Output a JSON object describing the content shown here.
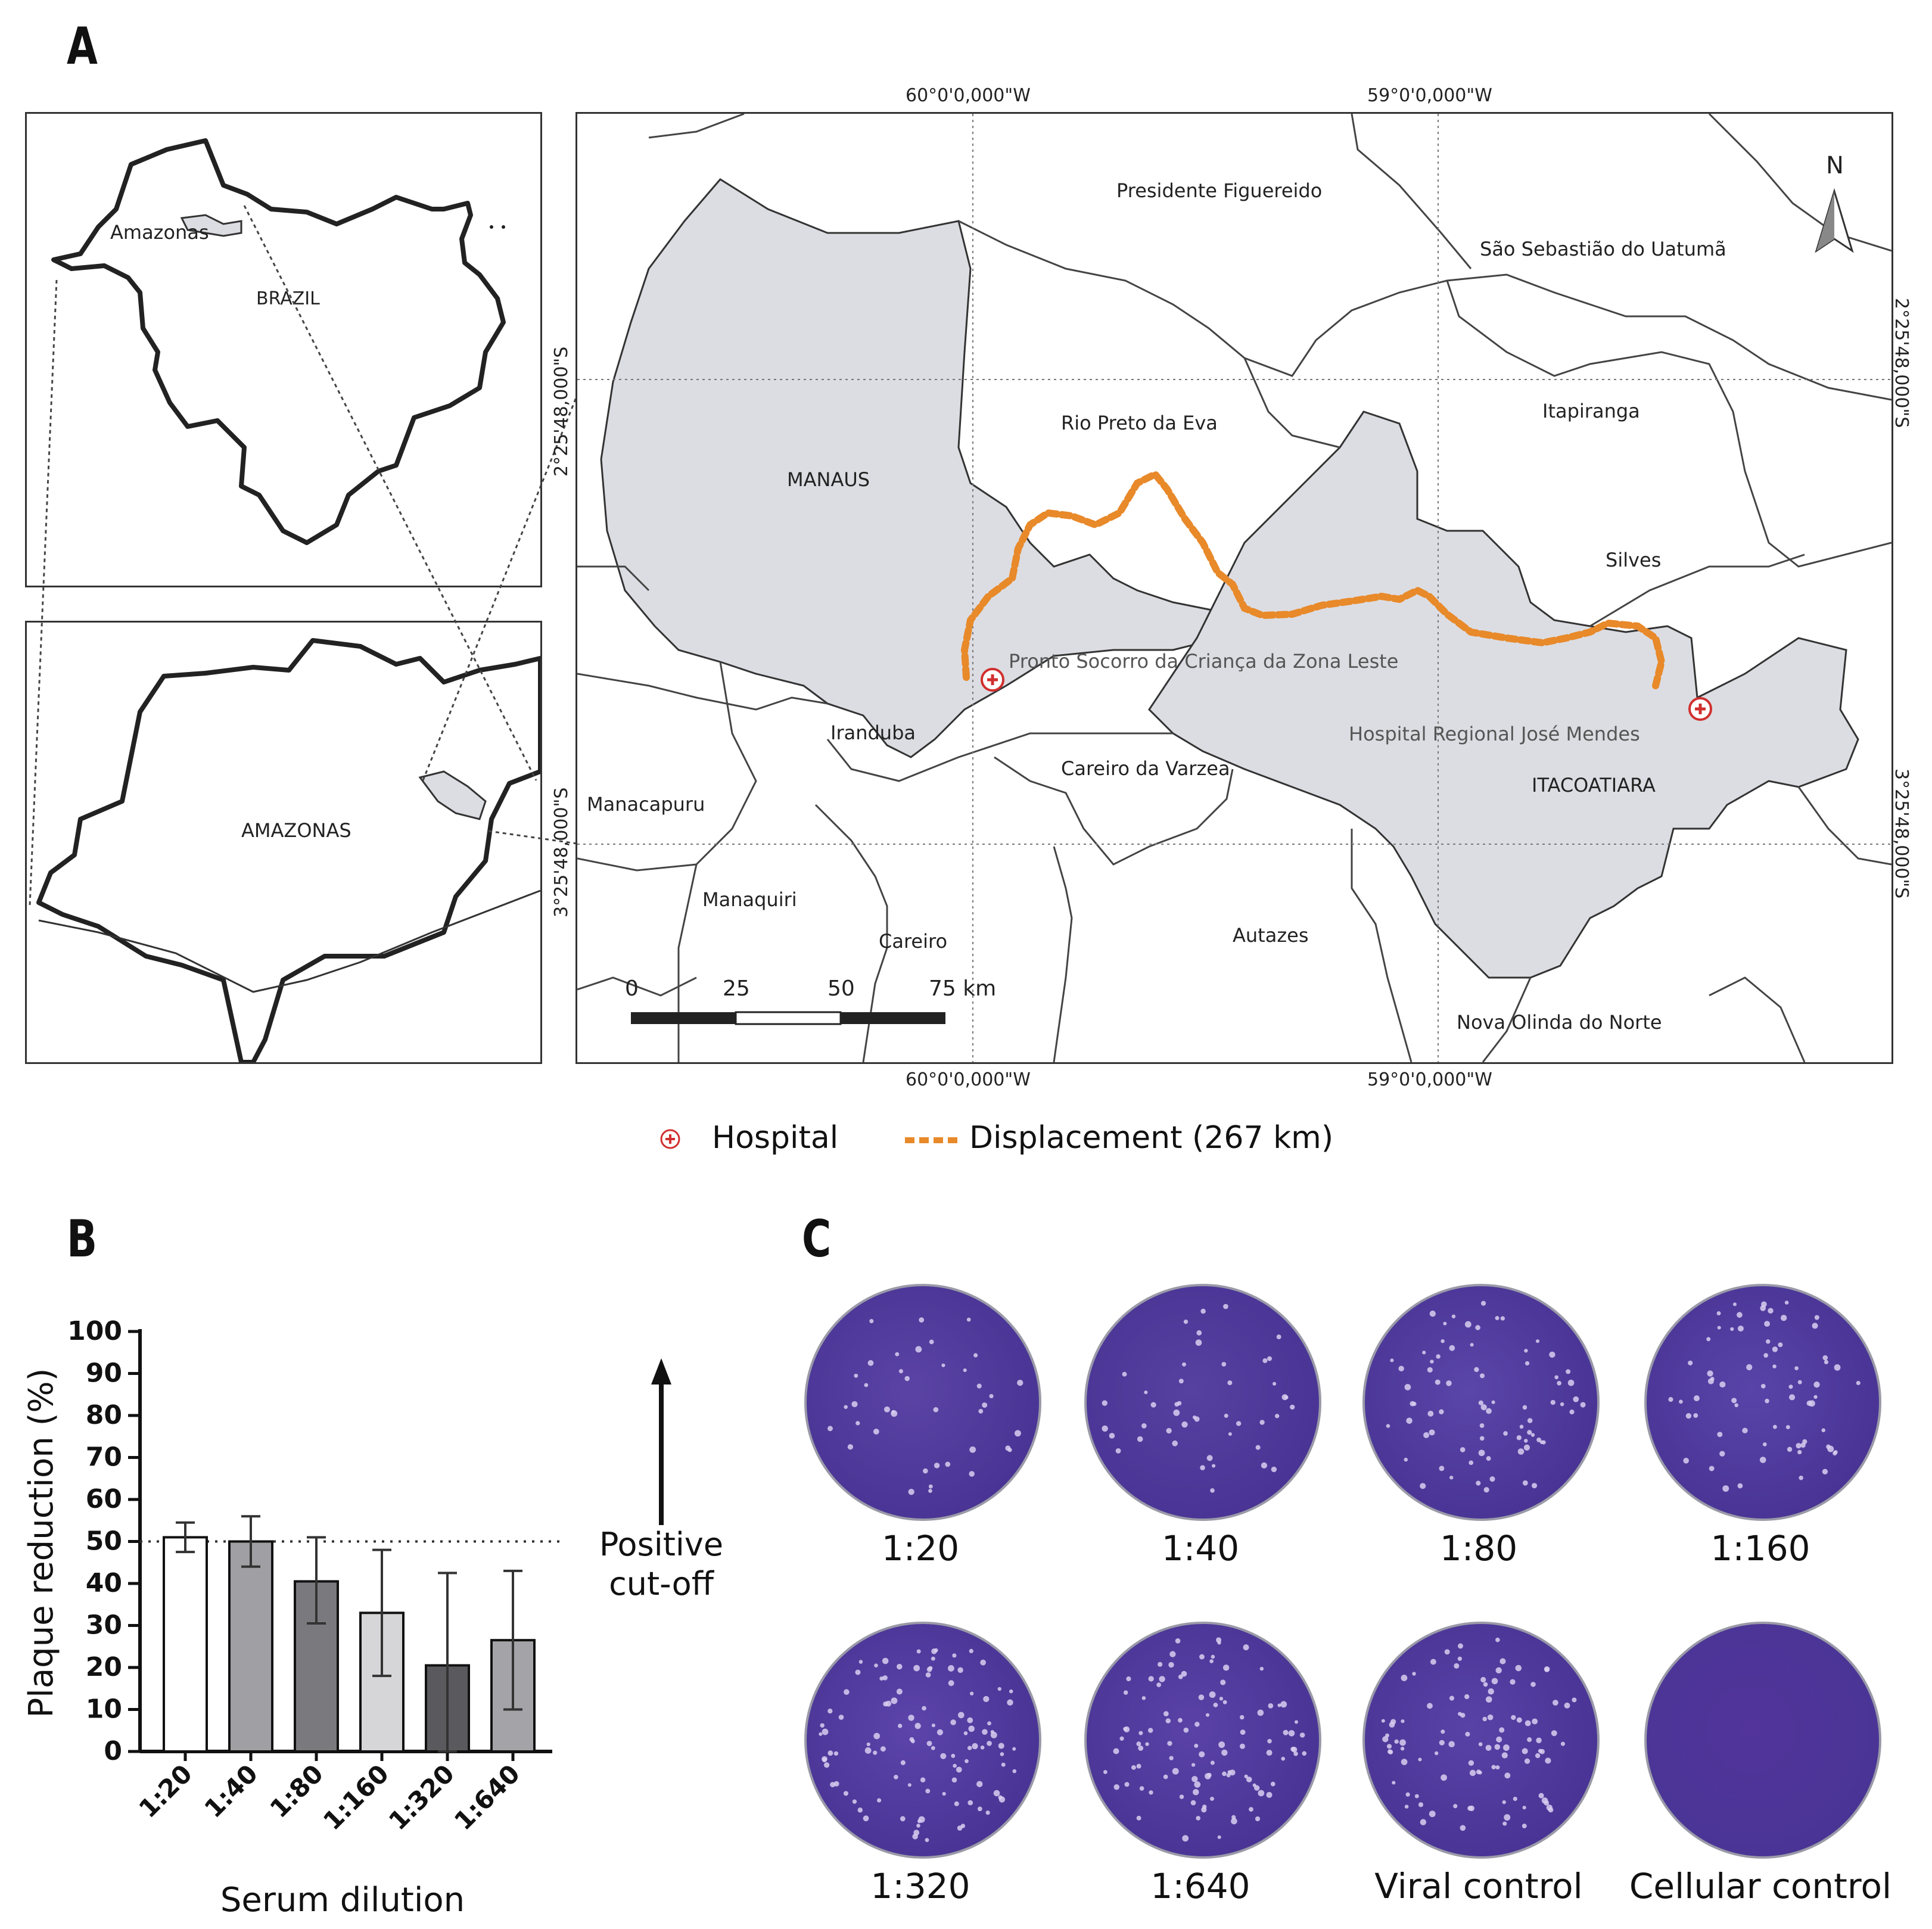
{
  "panel_a": {
    "letter": "A",
    "brazil_inset": {
      "state_label": "Amazonas",
      "country_label": "BRAZIL"
    },
    "amazonas_inset": {
      "state_label": "AMAZONAS"
    },
    "coordinates": {
      "lon_west": "60°0'0,000\"W",
      "lon_east": "59°0'0,000\"W",
      "lat_north": "2°25'48,000\"S",
      "lat_south": "3°25'48,000\"S"
    },
    "north_label": "N",
    "municipalities": {
      "presidente_figuereido": "Presidente Figuereido",
      "sao_sebastiao": "São Sebastião do Uatumã",
      "rio_preto": "Rio Preto da Eva",
      "itapiranga": "Itapiranga",
      "manaus": "MANAUS",
      "silves": "Silves",
      "iranduba": "Iranduba",
      "careiro_varzea": "Careiro da Varzea",
      "manacapuru": "Manacapuru",
      "itacoatiara": "ITACOATIARA",
      "manaquiri": "Manaquiri",
      "careiro": "Careiro",
      "autazes": "Autazes",
      "nova_olinda": "Nova Olinda do Norte"
    },
    "hospitals": {
      "pronto_socorro": "Pronto Socorro da Criança da Zona Leste",
      "regional": "Hospital Regional José Mendes"
    },
    "scale_bar": {
      "t0": "0",
      "t1": "25",
      "t2": "50",
      "t3": "75 km"
    },
    "legend": {
      "hospital": "Hospital",
      "displacement": "Displacement (267 km)"
    },
    "colors": {
      "shaded": "#dcdde2",
      "route": "#e8892a",
      "hospital": "#d12f2f"
    }
  },
  "panel_b": {
    "letter": "B",
    "chart_data": {
      "type": "bar",
      "categories": [
        "1:20",
        "1:40",
        "1:80",
        "1:160",
        "1:320",
        "1:640"
      ],
      "values": [
        51,
        50,
        40.5,
        33,
        20.5,
        26.5
      ],
      "error_low": [
        47.5,
        44,
        30.5,
        18,
        0,
        10
      ],
      "error_high": [
        54.5,
        56,
        51,
        48,
        42.5,
        43
      ],
      "bar_colors": [
        "#ffffff",
        "#a0a0a4",
        "#7a7a7e",
        "#d6d6d8",
        "#5a5a5e",
        "#a4a4a8"
      ],
      "ylabel": "Plaque reduction (%)",
      "xlabel": "Serum dilution",
      "ylim": [
        0,
        100
      ],
      "yticks": [
        "0",
        "10",
        "20",
        "30",
        "40",
        "50",
        "60",
        "70",
        "80",
        "90",
        "100"
      ],
      "cutoff": 50
    },
    "cutoff_label": "Positive cut-off"
  },
  "panel_c": {
    "letter": "C",
    "dishes": [
      {
        "label": "1:20",
        "plaques": 40,
        "tone": "#5a43a4"
      },
      {
        "label": "1:40",
        "plaques": 45,
        "tone": "#5640a0"
      },
      {
        "label": "1:80",
        "plaques": 75,
        "tone": "#5a46a8"
      },
      {
        "label": "1:160",
        "plaques": 70,
        "tone": "#5844a8"
      },
      {
        "label": "1:320",
        "plaques": 110,
        "tone": "#5c44aa"
      },
      {
        "label": "1:640",
        "plaques": 105,
        "tone": "#5a42a6"
      },
      {
        "label": "Viral control",
        "plaques": 100,
        "tone": "#5842a6"
      },
      {
        "label": "Cellular control",
        "plaques": 0,
        "tone": "#52349a"
      }
    ]
  }
}
